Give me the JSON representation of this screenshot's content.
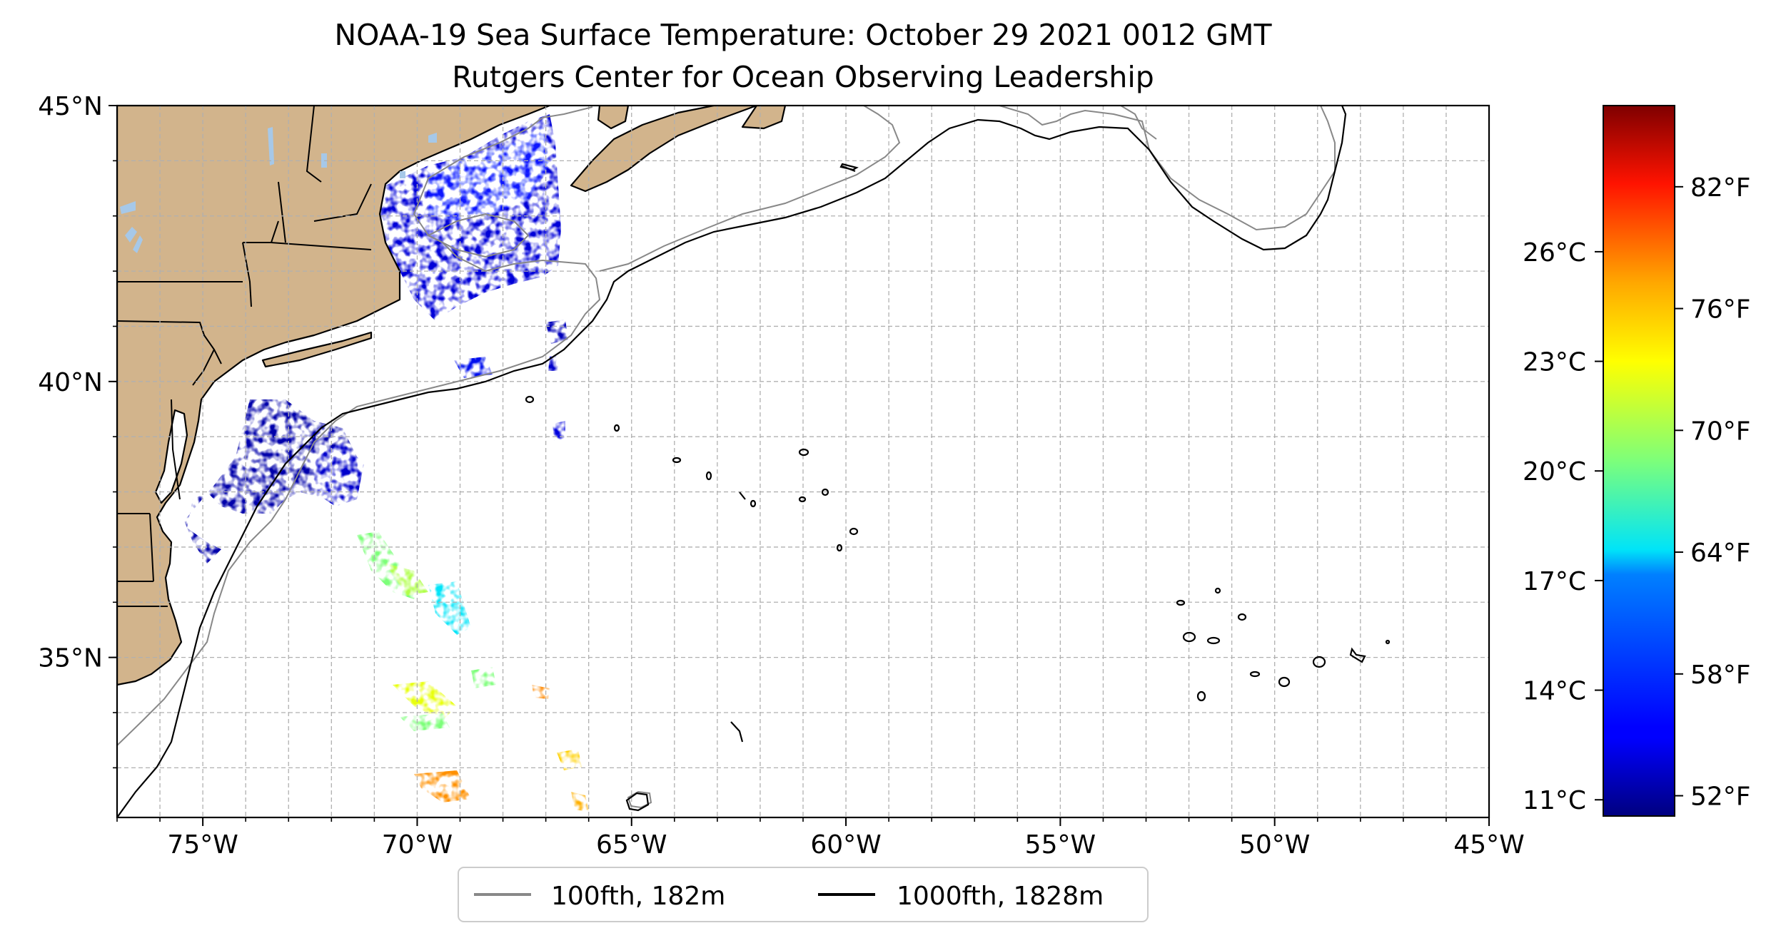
{
  "title": {
    "line1": "NOAA-19 Sea Surface Temperature: October 29 2021 0012 GMT",
    "line2": "Rutgers Center for Ocean Observing Leadership"
  },
  "map": {
    "lon_range": [
      -77,
      -45
    ],
    "lat_range": [
      32.1,
      45
    ],
    "lon_ticks": [
      {
        "value": -75,
        "label": "75°W"
      },
      {
        "value": -70,
        "label": "70°W"
      },
      {
        "value": -65,
        "label": "65°W"
      },
      {
        "value": -60,
        "label": "60°W"
      },
      {
        "value": -55,
        "label": "55°W"
      },
      {
        "value": -50,
        "label": "50°W"
      },
      {
        "value": -45,
        "label": "45°W"
      }
    ],
    "lat_ticks": [
      {
        "value": 45,
        "label": "45°N"
      },
      {
        "value": 40,
        "label": "40°N"
      },
      {
        "value": 35,
        "label": "35°N"
      }
    ],
    "gridlines": "dashed every 1°",
    "land_color": "#d2b48c",
    "lake_color": "#a6c8e8",
    "contour_colors": {
      "100fth": "#888888",
      "1000fth": "#000000"
    }
  },
  "colorbar": {
    "colormap": "jet",
    "f_range": [
      51,
      86
    ],
    "fahrenheit_ticks": [
      {
        "value": 52,
        "label": "52°F"
      },
      {
        "value": 58,
        "label": "58°F"
      },
      {
        "value": 64,
        "label": "64°F"
      },
      {
        "value": 70,
        "label": "70°F"
      },
      {
        "value": 76,
        "label": "76°F"
      },
      {
        "value": 82,
        "label": "82°F"
      }
    ],
    "celsius_ticks": [
      {
        "value": 11,
        "label": "11°C"
      },
      {
        "value": 14,
        "label": "14°C"
      },
      {
        "value": 17,
        "label": "17°C"
      },
      {
        "value": 20,
        "label": "20°C"
      },
      {
        "value": 23,
        "label": "23°C"
      },
      {
        "value": 26,
        "label": "26°C"
      }
    ]
  },
  "legend": {
    "position": "bottom-center",
    "items": [
      {
        "label": "100fth, 182m",
        "color": "#888888"
      },
      {
        "label": "1000fth, 1828m",
        "color": "#000000"
      }
    ]
  }
}
